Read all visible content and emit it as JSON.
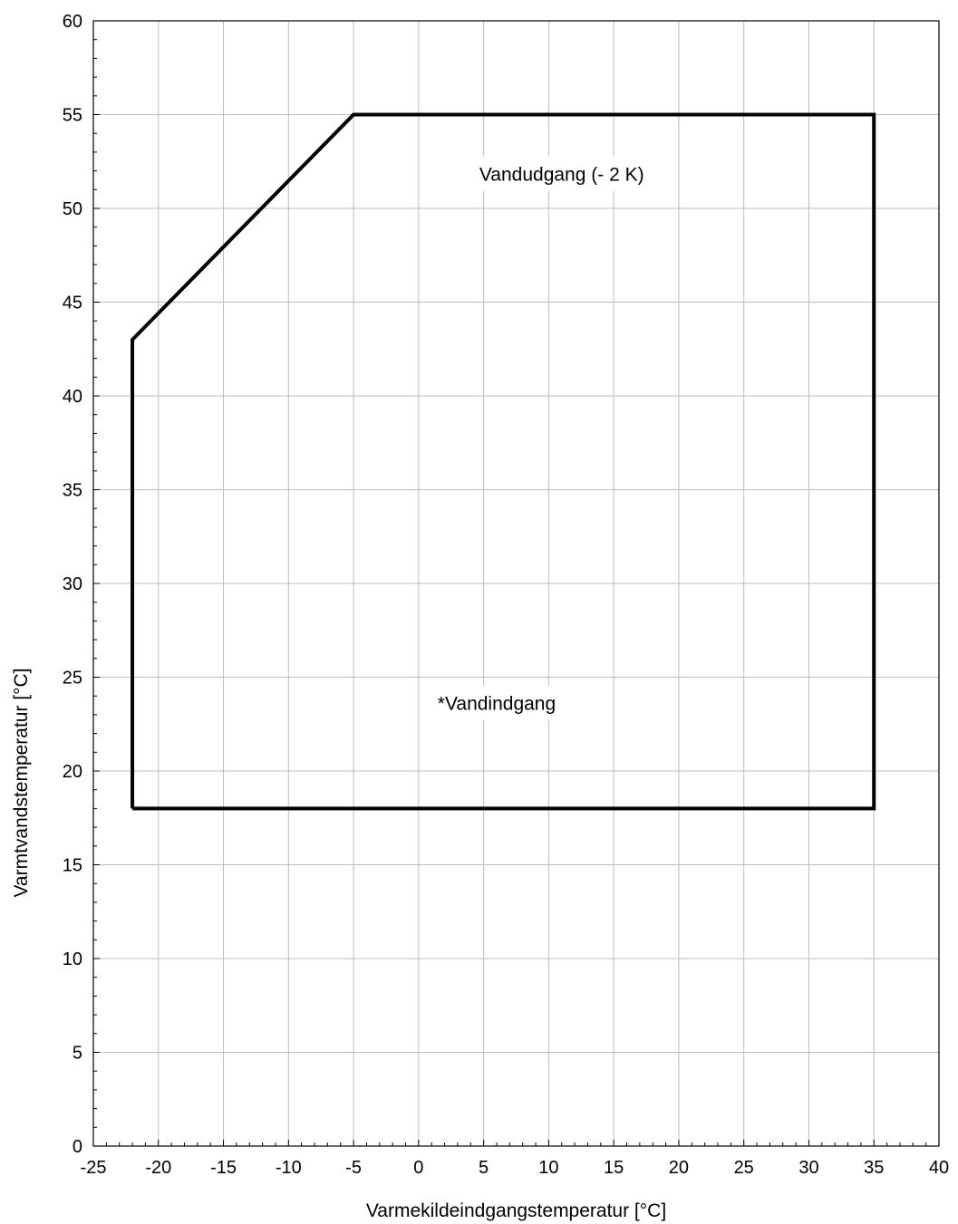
{
  "chart_data": {
    "type": "line",
    "title": "",
    "xlabel": "Varmekildeindgangstemperatur [°C]",
    "ylabel": "Varmtvandstemperatur [°C]",
    "xlim": [
      -25,
      40
    ],
    "ylim": [
      0,
      60
    ],
    "x_ticks": [
      "-25",
      "-20",
      "-15",
      "-10",
      "-5",
      "0",
      "5",
      "10",
      "15",
      "20",
      "25",
      "30",
      "35",
      "40"
    ],
    "y_ticks": [
      "0",
      "5",
      "10",
      "15",
      "20",
      "25",
      "30",
      "35",
      "40",
      "45",
      "50",
      "55",
      "60"
    ],
    "grid": true,
    "series": [
      {
        "points": [
          {
            "x": -22,
            "y": 18
          },
          {
            "x": -22,
            "y": 43
          },
          {
            "x": -5,
            "y": 55
          },
          {
            "x": 35,
            "y": 55
          },
          {
            "x": 35,
            "y": 18
          },
          {
            "x": -22,
            "y": 18
          }
        ]
      }
    ],
    "annotations": [
      {
        "text": "Vandudgang (- 2 K)",
        "x": 11,
        "y": 51.8
      },
      {
        "text": "*Vandindgang",
        "x": 6,
        "y": 23.6
      }
    ]
  }
}
